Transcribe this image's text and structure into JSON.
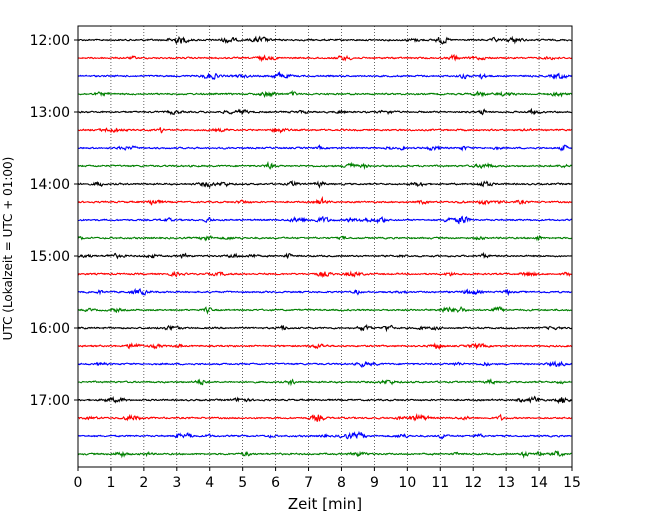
{
  "chart_data": {
    "type": "line",
    "subtype": "helicorder",
    "title": "",
    "xlabel": "Zeit  [min]",
    "ylabel": "UTC (Lokalzeit = UTC + 01:00)",
    "xlim": [
      0,
      15
    ],
    "x_ticks": [
      "0",
      "1",
      "2",
      "3",
      "4",
      "5",
      "6",
      "7",
      "8",
      "9",
      "10",
      "11",
      "12",
      "13",
      "14",
      "15"
    ],
    "y_ticks": [
      "12:00",
      "13:00",
      "14:00",
      "15:00",
      "16:00",
      "17:00"
    ],
    "trace_interval_min": 15,
    "traces_per_hour": 4,
    "start_time": "12:00",
    "end_time": "17:45",
    "grid": "vertical dotted at each minute",
    "trace_colors": [
      "#000000",
      "#ff0000",
      "#0000ff",
      "#008000"
    ],
    "series": [
      {
        "start": "12:00"
      },
      {
        "start": "12:15"
      },
      {
        "start": "12:30"
      },
      {
        "start": "12:45"
      },
      {
        "start": "13:00"
      },
      {
        "start": "13:15"
      },
      {
        "start": "13:30"
      },
      {
        "start": "13:45"
      },
      {
        "start": "14:00"
      },
      {
        "start": "14:15"
      },
      {
        "start": "14:30"
      },
      {
        "start": "14:45"
      },
      {
        "start": "15:00"
      },
      {
        "start": "15:15"
      },
      {
        "start": "15:30"
      },
      {
        "start": "15:45"
      },
      {
        "start": "16:00"
      },
      {
        "start": "16:15"
      },
      {
        "start": "16:30"
      },
      {
        "start": "16:45"
      },
      {
        "start": "17:00"
      },
      {
        "start": "17:15"
      },
      {
        "start": "17:30"
      },
      {
        "start": "17:45"
      }
    ]
  }
}
